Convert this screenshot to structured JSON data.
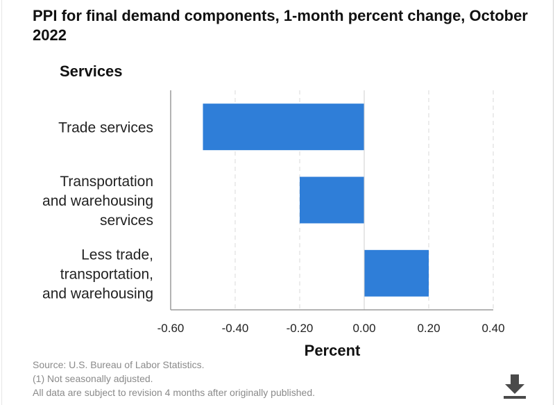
{
  "chart_data": {
    "type": "bar",
    "orientation": "horizontal",
    "title": "PPI for final demand components, 1-month percent change, October 2022",
    "subtitle": "Services",
    "categories": [
      [
        "Trade services"
      ],
      [
        "Transportation",
        "and warehousing",
        "services"
      ],
      [
        "Less trade,",
        "transportation,",
        "and warehousing"
      ]
    ],
    "values": [
      -0.5,
      -0.2,
      0.2
    ],
    "xlabel": "Percent",
    "xlim": [
      -0.6,
      0.4
    ],
    "ticks": [
      "-0.60",
      "-0.40",
      "-0.20",
      "0.00",
      "0.20",
      "0.40"
    ],
    "tick_values": [
      -0.6,
      -0.4,
      -0.2,
      0.0,
      0.2,
      0.4
    ],
    "grid": true,
    "bar_color": "#2f7ed8"
  },
  "notes": {
    "source": "Source: U.S. Bureau of Labor Statistics.",
    "footnote": "(1) Not seasonally adjusted.",
    "revision": "All data are subject to revision 4 months after originally published."
  },
  "icons": {
    "download": "download-icon"
  }
}
